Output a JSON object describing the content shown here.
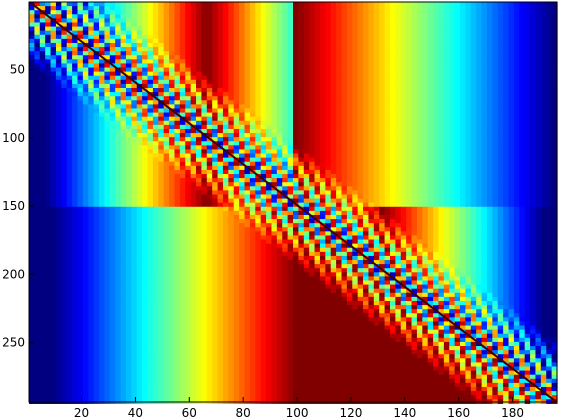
{
  "chart_data": {
    "type": "heatmap",
    "colormap": "jet",
    "title": "",
    "xlabel": "",
    "ylabel": "",
    "xlim": [
      0.5,
      196.5
    ],
    "ylim": [
      0.5,
      293.5
    ],
    "y_axis_direction": "reversed",
    "grid": false,
    "x_ticks": [
      20,
      40,
      60,
      80,
      100,
      120,
      140,
      160,
      180
    ],
    "y_ticks": [
      50,
      100,
      150,
      200,
      250
    ],
    "background_left_color": "#0000a0",
    "background_right_color": "#0000a0",
    "diagonal_from": [
      1,
      1
    ],
    "diagonal_to": [
      196,
      293
    ],
    "block_breaks_y": [
      25,
      50,
      75,
      100,
      125,
      150,
      175,
      200,
      225,
      250,
      275
    ],
    "red_bands_x": [
      48,
      85,
      101,
      130,
      148
    ]
  }
}
